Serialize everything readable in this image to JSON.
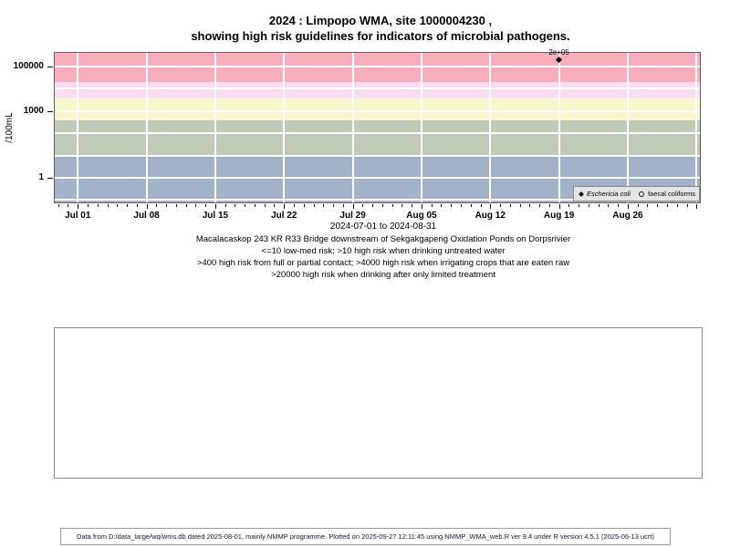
{
  "title": {
    "line1": "2024 : Limpopo WMA, site 1000004230 ,",
    "line2": "showing high risk guidelines for indicators of microbial pathogens."
  },
  "chart_data": {
    "type": "scatter",
    "title": "2024 : Limpopo WMA, site 1000004230 , showing high risk guidelines for indicators of microbial pathogens.",
    "ylabel": "/100mL",
    "y_scale": "log10",
    "log_y_range": [
      -1.15,
      5.66
    ],
    "x_range_days": [
      -2.44,
      63.44
    ],
    "x_epoch": "2024-07-01",
    "x_range_label": "2024-07-01 to 2024-08-31",
    "grid": true,
    "y_ticks": [
      {
        "value": 100000,
        "label": "100000"
      },
      {
        "value": 1000,
        "label": "1000"
      },
      {
        "value": 1,
        "label": "1"
      }
    ],
    "x_ticks": [
      {
        "day": 0,
        "label": "Jul 01"
      },
      {
        "day": 7,
        "label": "Jul 08"
      },
      {
        "day": 14,
        "label": "Jul 15"
      },
      {
        "day": 21,
        "label": "Jul 22"
      },
      {
        "day": 28,
        "label": "Jul 29"
      },
      {
        "day": 35,
        "label": "Aug 05"
      },
      {
        "day": 42,
        "label": "Aug 12"
      },
      {
        "day": 49,
        "label": "Aug 19"
      },
      {
        "day": 56,
        "label": "Aug 26"
      }
    ],
    "x_gridline_days": [
      0,
      7,
      14,
      21,
      28,
      35,
      42,
      49,
      56,
      63
    ],
    "bands": [
      {
        "label": "<=10 low-med risk",
        "min": null,
        "max": 10,
        "color": "#a2b2c8"
      },
      {
        "label": ">10 high risk when drinking untreated water",
        "min": 10,
        "max": 400,
        "color": "#c0cbb7"
      },
      {
        "label": ">400 high risk from full or partial contact",
        "min": 400,
        "max": 4000,
        "color": "#f9f7ce"
      },
      {
        "label": ">4000 high risk when irrigating crops that are eaten raw",
        "min": 4000,
        "max": 20000,
        "color": "#fcdcf2"
      },
      {
        "label": ">20000 high risk when drinking after only limited treatment",
        "min": 20000,
        "max": null,
        "color": "#f9aebb"
      }
    ],
    "series": [
      {
        "name": "Eschericia coli",
        "marker": "filled-diamond",
        "points": [
          {
            "date": "2024-08-19",
            "day": 49,
            "value": 200000,
            "label": "2e+05"
          }
        ]
      },
      {
        "name": "faecal coliforms",
        "marker": "open-circle",
        "points": []
      }
    ],
    "legend_position": "bottom-right"
  },
  "subtitle": "2024-07-01 to 2024-08-31",
  "captions": [
    "Macalacaskop 243 KR R33 Bridge downstream of Sekgakgapeng Oxidation Ponds on Dorpsrivier",
    "<=10 low-med risk; >10 high risk when drinking untreated water",
    ">400 high risk from full or partial contact; >4000 high risk when irrigating crops that are eaten raw",
    ">20000 high risk when drinking after only limited treatment"
  ],
  "footer": {
    "text": "Data from D:/data_large/wq/wms.db dated 2025-08-01, mainly NMMP programme. Plotted on 2025-09-27 12:11:45 using NMMP_WMA_web.R ver 9.4 under R version 4.5.1 (2025-06-13 ucrt)"
  },
  "colors": {
    "grid": "#ffffff",
    "plot_border": "#606060",
    "legend_bg": "#e4e5e9",
    "legend_border": "#88888f",
    "panel_border": "#8c8c8c",
    "marker": "#000000"
  }
}
